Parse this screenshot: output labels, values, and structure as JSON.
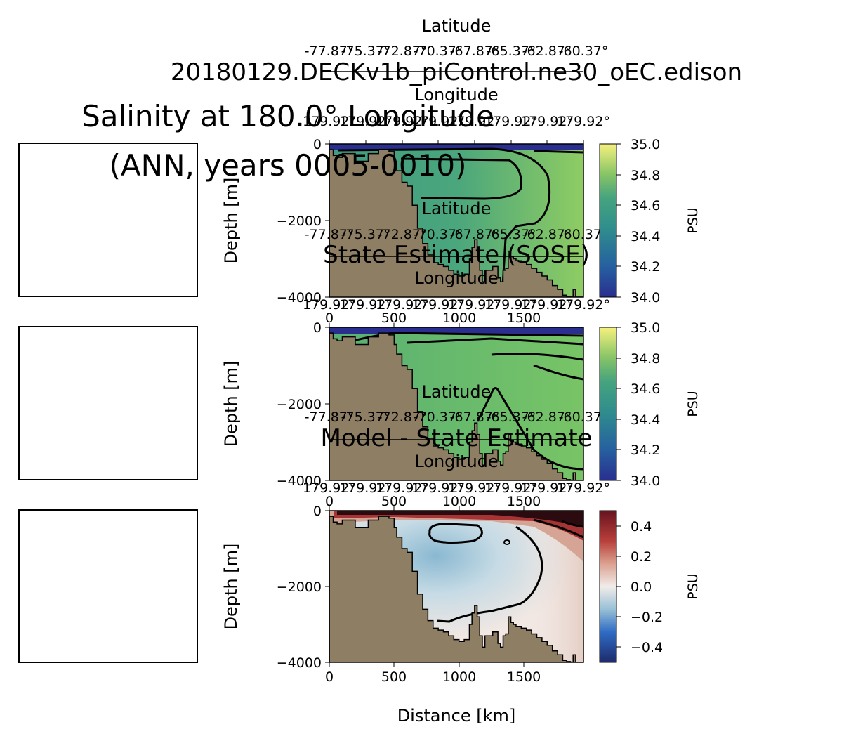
{
  "chart_data": {
    "type": "heatmap",
    "suptitle_run": "20180129.DECKv1b_piControl.ne30_oEC.edison",
    "title_main": "Salinity at 180.0° Longitude",
    "title_period": "(ANN, years 0005-0010)",
    "xlabel": "Distance [km]",
    "ylabel": "Depth [m]",
    "xlim": [
      0,
      1960
    ],
    "ylim": [
      -4000,
      0
    ],
    "x_ticks": [
      "0",
      "500",
      "1000",
      "1500"
    ],
    "y_ticks": [
      "0",
      "−2000",
      "−4000"
    ],
    "top_axis_lat_label": "Latitude",
    "top_axis_lon_label": "Longitude",
    "lat_ticks": [
      "-77.87°",
      "-75.37°",
      "-72.87°",
      "-70.37°",
      "-67.87°",
      "-65.37°",
      "-62.87°",
      "-60.37°"
    ],
    "lon_ticks": [
      "179.92°",
      "179.92°",
      "179.92°",
      "179.92°",
      "179.92°",
      "179.92°",
      "179.92°",
      "179.92°"
    ],
    "panels": [
      {
        "name": "model",
        "title": "",
        "colorbar_label": "PSU",
        "colorbar_ticks": [
          "35.0",
          "34.8",
          "34.6",
          "34.4",
          "34.2",
          "34.0"
        ],
        "vmin": 34.0,
        "vmax": 35.0,
        "colormap": "haline"
      },
      {
        "name": "sose",
        "title": "State Estimate (SOSE)",
        "colorbar_label": "PSU",
        "colorbar_ticks": [
          "35.0",
          "34.8",
          "34.6",
          "34.4",
          "34.2",
          "34.0"
        ],
        "vmin": 34.0,
        "vmax": 35.0,
        "colormap": "haline"
      },
      {
        "name": "difference",
        "title": "Model - State Estimate",
        "colorbar_label": "PSU",
        "colorbar_ticks": [
          "0.4",
          "0.2",
          "0.0",
          "−0.2",
          "−0.4"
        ],
        "vmin": -0.5,
        "vmax": 0.5,
        "colormap": "balance"
      }
    ],
    "bathymetry": {
      "distance_km": [
        0,
        30,
        60,
        100,
        200,
        300,
        380,
        420,
        460,
        500,
        520,
        560,
        600,
        640,
        680,
        720,
        760,
        800,
        840,
        880,
        920,
        960,
        1000,
        1040,
        1080,
        1100,
        1120,
        1140,
        1160,
        1180,
        1200,
        1260,
        1300,
        1320,
        1340,
        1360,
        1380,
        1400,
        1420,
        1440,
        1480,
        1520,
        1560,
        1600,
        1640,
        1680,
        1720,
        1760,
        1800,
        1830,
        1860,
        1880,
        1900,
        1930,
        1960
      ],
      "depth_m": [
        -150,
        -300,
        -350,
        -250,
        -450,
        -250,
        -150,
        -150,
        -200,
        -450,
        -700,
        -1000,
        -1100,
        -1600,
        -2200,
        -2600,
        -2900,
        -3100,
        -3150,
        -3200,
        -3300,
        -3400,
        -3450,
        -3400,
        -3000,
        -2700,
        -2500,
        -2800,
        -3300,
        -3600,
        -3300,
        -3200,
        -3500,
        -3600,
        -3300,
        -3250,
        -2800,
        -2950,
        -3000,
        -3050,
        -3100,
        -3150,
        -3250,
        -3350,
        -3450,
        -3550,
        -3700,
        -3800,
        -3950,
        -3980,
        -4000,
        -3800,
        -4000,
        -4000,
        -4000
      ]
    }
  },
  "map_panels": [
    "left-inset-1",
    "left-inset-2",
    "left-inset-3"
  ],
  "colors": {
    "land": "#8e7e64",
    "haline_low": "#292e8f",
    "haline_mid": "#46a47e",
    "haline_high": "#f5f17e",
    "balance_low": "#1e2a6b",
    "balance_mid": "#f1ece9",
    "balance_high": "#67131f"
  }
}
